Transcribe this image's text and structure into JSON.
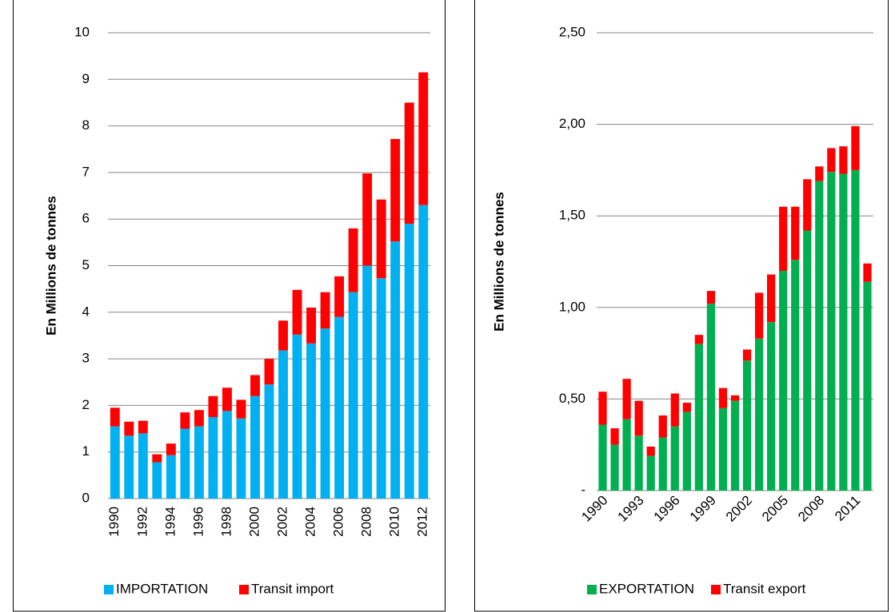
{
  "chart_data": [
    {
      "type": "stacked_bar",
      "y_label": "En Millions de tonnes",
      "categories": [
        "1990",
        null,
        "1992",
        null,
        "1994",
        null,
        "1996",
        null,
        "1998",
        null,
        "2000",
        null,
        "2002",
        null,
        "2004",
        null,
        "2006",
        null,
        "2008",
        null,
        "2010",
        null,
        "2012"
      ],
      "series": [
        {
          "name": "IMPORTATION",
          "color": "#00b0f0",
          "values": [
            1.55,
            1.35,
            1.4,
            0.78,
            0.93,
            1.5,
            1.55,
            1.75,
            1.88,
            1.72,
            2.2,
            2.45,
            3.18,
            3.52,
            3.33,
            3.65,
            3.9,
            4.43,
            5.0,
            4.73,
            5.52,
            5.9,
            6.3
          ]
        },
        {
          "name": "Transit import",
          "color": "#ff0000",
          "values": [
            0.4,
            0.3,
            0.27,
            0.17,
            0.25,
            0.35,
            0.35,
            0.45,
            0.5,
            0.4,
            0.45,
            0.55,
            0.64,
            0.96,
            0.77,
            0.78,
            0.87,
            1.37,
            1.98,
            1.69,
            2.2,
            2.6,
            2.85
          ]
        }
      ],
      "ylim": [
        0,
        10
      ],
      "yticks": [
        0,
        1,
        2,
        3,
        4,
        5,
        6,
        7,
        8,
        9,
        10
      ],
      "grid": true,
      "legend": "bottom"
    },
    {
      "type": "stacked_bar",
      "y_label": "En Millions de tonnes",
      "categories": [
        "1990",
        null,
        null,
        "1993",
        null,
        null,
        "1996",
        null,
        null,
        "1999",
        null,
        null,
        "2002",
        null,
        null,
        "2005",
        null,
        null,
        "2008",
        null,
        null,
        "2011",
        null
      ],
      "series": [
        {
          "name": "EXPORTATION",
          "color": "#00b050",
          "values": [
            0.36,
            0.25,
            0.39,
            0.3,
            0.19,
            0.29,
            0.35,
            0.43,
            0.8,
            1.02,
            0.45,
            0.49,
            0.71,
            0.83,
            0.92,
            1.2,
            1.26,
            1.42,
            1.69,
            1.74,
            1.73,
            1.75,
            1.14
          ]
        },
        {
          "name": "Transit export",
          "color": "#ff0000",
          "values": [
            0.18,
            0.09,
            0.22,
            0.19,
            0.05,
            0.12,
            0.18,
            0.05,
            0.05,
            0.07,
            0.11,
            0.03,
            0.06,
            0.25,
            0.26,
            0.35,
            0.29,
            0.28,
            0.08,
            0.13,
            0.15,
            0.24,
            0.1
          ]
        }
      ],
      "ylim": [
        0,
        2.5
      ],
      "yticks": [
        {
          "value": 0,
          "label": "-"
        },
        {
          "value": 0.5,
          "label": "0,50"
        },
        {
          "value": 1,
          "label": "1,00"
        },
        {
          "value": 1.5,
          "label": "1,50"
        },
        {
          "value": 2,
          "label": "2,00"
        },
        {
          "value": 2.5,
          "label": "2,50"
        }
      ],
      "grid": true,
      "legend": "bottom"
    }
  ]
}
